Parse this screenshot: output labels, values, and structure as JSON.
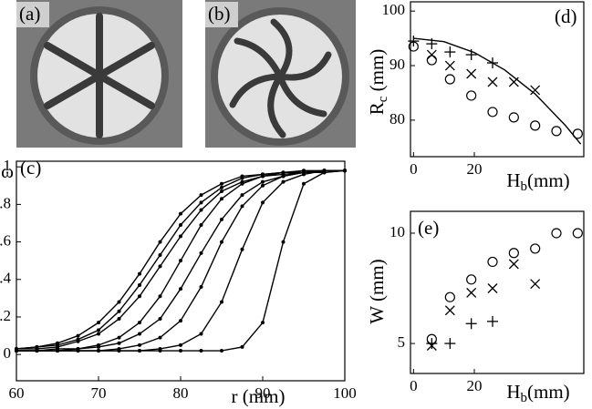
{
  "photos": [
    {
      "label": "(a)"
    },
    {
      "label": "(b)"
    }
  ],
  "chart_data": [
    {
      "type": "line",
      "label": "(c)",
      "xlabel": "r (mm)",
      "ylabel": "ω",
      "xlim": [
        60,
        100
      ],
      "ylim": [
        -0.14,
        1.03
      ],
      "xticks": [
        60,
        70,
        80,
        90,
        100
      ],
      "yticks": [
        0,
        0.2,
        0.4,
        0.6,
        0.8,
        1
      ],
      "x": [
        60,
        62.5,
        65,
        67.5,
        70,
        72.5,
        75,
        77.5,
        80,
        82.5,
        85,
        87.5,
        90,
        92.5,
        95,
        97.5,
        100
      ],
      "series": [
        {
          "color": "#000",
          "marker": "dot",
          "style": "line",
          "values": [
            0.03,
            0.04,
            0.06,
            0.1,
            0.17,
            0.28,
            0.43,
            0.6,
            0.75,
            0.85,
            0.91,
            0.95,
            0.96,
            0.97,
            0.98,
            0.98,
            0.98
          ]
        },
        {
          "color": "#000",
          "marker": "dot",
          "style": "line",
          "values": [
            0.03,
            0.04,
            0.05,
            0.08,
            0.13,
            0.23,
            0.37,
            0.53,
            0.69,
            0.81,
            0.89,
            0.94,
            0.96,
            0.97,
            0.97,
            0.98,
            0.98
          ]
        },
        {
          "color": "#000",
          "marker": "dot",
          "style": "line",
          "values": [
            0.03,
            0.03,
            0.04,
            0.07,
            0.11,
            0.19,
            0.31,
            0.47,
            0.63,
            0.77,
            0.87,
            0.92,
            0.95,
            0.96,
            0.97,
            0.98,
            0.98
          ]
        },
        {
          "color": "#000",
          "marker": "dot",
          "style": "line",
          "values": [
            0.02,
            0.02,
            0.03,
            0.03,
            0.05,
            0.09,
            0.17,
            0.31,
            0.5,
            0.69,
            0.83,
            0.91,
            0.95,
            0.97,
            0.97,
            0.98,
            0.98
          ]
        },
        {
          "color": "#000",
          "marker": "dot",
          "style": "line",
          "values": [
            0.02,
            0.02,
            0.02,
            0.03,
            0.04,
            0.06,
            0.11,
            0.19,
            0.35,
            0.54,
            0.72,
            0.85,
            0.92,
            0.95,
            0.97,
            0.97,
            0.98
          ]
        },
        {
          "color": "#000",
          "marker": "dot",
          "style": "line",
          "values": [
            0.02,
            0.02,
            0.02,
            0.02,
            0.02,
            0.03,
            0.05,
            0.09,
            0.18,
            0.36,
            0.6,
            0.79,
            0.9,
            0.95,
            0.97,
            0.98,
            0.98
          ]
        },
        {
          "color": "#000",
          "marker": "dot",
          "style": "line",
          "values": [
            0.02,
            0.02,
            0.02,
            0.02,
            0.02,
            0.02,
            0.02,
            0.03,
            0.05,
            0.11,
            0.28,
            0.56,
            0.81,
            0.92,
            0.96,
            0.98,
            0.98
          ]
        },
        {
          "color": "#000",
          "marker": "dot",
          "style": "line",
          "values": [
            0.02,
            0.02,
            0.02,
            0.02,
            0.02,
            0.02,
            0.02,
            0.02,
            0.02,
            0.02,
            0.02,
            0.04,
            0.17,
            0.6,
            0.91,
            0.97,
            0.98
          ]
        }
      ]
    },
    {
      "type": "scatter",
      "label": "(d)",
      "xlabel": {
        "text": "H",
        "sub": "b",
        "unit": "(mm)"
      },
      "ylabel": {
        "text": "R",
        "sub": "c",
        "unit": " (mm)"
      },
      "xlim": [
        -1,
        56
      ],
      "ylim": [
        73.3,
        101.7
      ],
      "xticks": [
        0,
        20
      ],
      "yticks": [
        80,
        90,
        100
      ],
      "series": [
        {
          "color": "#000",
          "style": "line",
          "x": [
            0,
            10,
            20,
            30,
            40,
            50,
            55
          ],
          "values": [
            95,
            94.4,
            92.4,
            89.2,
            84.8,
            79,
            75.6
          ]
        },
        {
          "color": "#000",
          "marker": "o",
          "x": [
            0,
            6,
            12,
            19,
            26,
            33,
            40,
            47,
            54
          ],
          "values": [
            93.5,
            91,
            87.5,
            84.5,
            81.5,
            80.5,
            79,
            78,
            77.5
          ]
        },
        {
          "color": "#000",
          "marker": "+",
          "x": [
            0,
            6,
            12,
            19,
            26
          ],
          "values": [
            94.5,
            94,
            92.5,
            92,
            90.5
          ]
        },
        {
          "color": "#000",
          "marker": "x",
          "x": [
            6,
            12,
            19,
            26,
            33,
            40
          ],
          "values": [
            92,
            90,
            88.5,
            87,
            87,
            85.5
          ]
        }
      ]
    },
    {
      "type": "scatter",
      "label": "(e)",
      "xlabel": {
        "text": "H",
        "sub": "b",
        "unit": "(mm)"
      },
      "ylabel": {
        "text": "W (mm)"
      },
      "xlim": [
        -1,
        56
      ],
      "ylim": [
        3.64,
        10.99
      ],
      "xticks": [
        0,
        20
      ],
      "yticks": [
        5,
        10
      ],
      "series": [
        {
          "color": "#000",
          "marker": "o",
          "x": [
            6,
            12,
            19,
            26,
            33,
            40,
            47,
            54
          ],
          "values": [
            5.2,
            7.1,
            7.9,
            8.7,
            9.1,
            9.3,
            10,
            10
          ]
        },
        {
          "color": "#000",
          "marker": "x",
          "x": [
            6,
            12,
            19,
            26,
            33,
            40
          ],
          "values": [
            4.9,
            6.5,
            7.3,
            7.5,
            8.6,
            7.7
          ]
        },
        {
          "color": "#000",
          "marker": "+",
          "x": [
            6,
            12,
            19,
            26
          ],
          "values": [
            5,
            5,
            5.9,
            6
          ]
        }
      ]
    }
  ]
}
